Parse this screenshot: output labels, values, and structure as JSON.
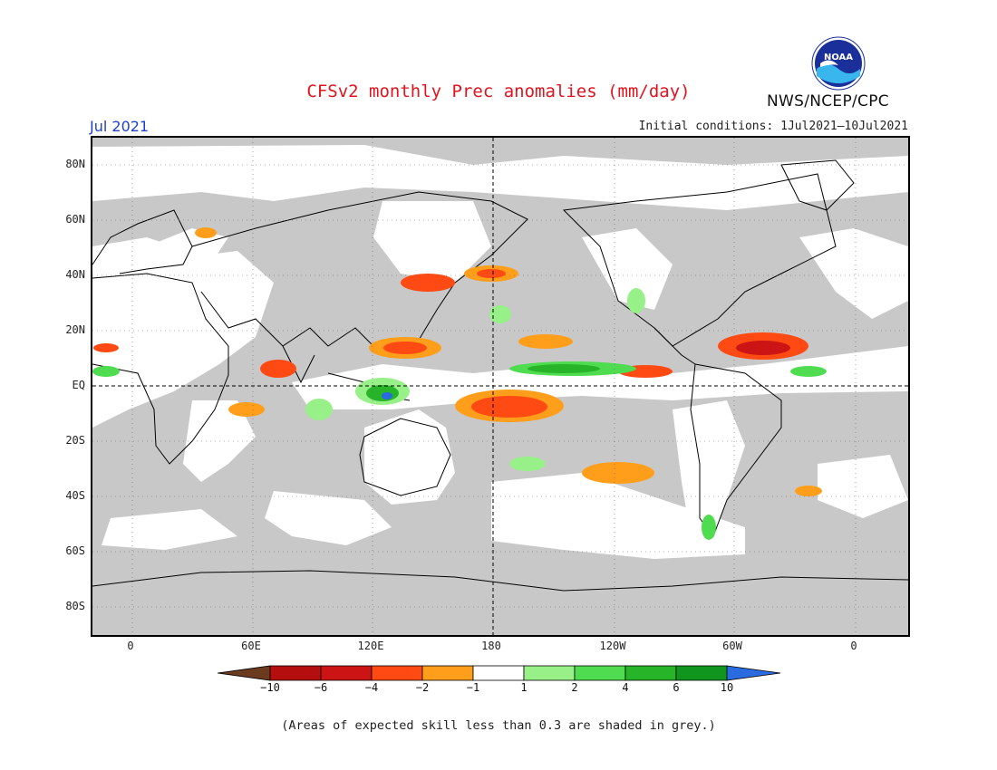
{
  "title": "CFSv2 monthly Prec anomalies (mm/day)",
  "agency": "NWS/NCEP/CPC",
  "logo_text": "NOAA",
  "month": "Jul 2021",
  "initial_conditions": "Initial conditions: 1Jul2021–10Jul2021",
  "lat_labels": [
    "80N",
    "60N",
    "40N",
    "20N",
    "EQ",
    "20S",
    "40S",
    "60S",
    "80S"
  ],
  "lon_labels": [
    "0",
    "60E",
    "120E",
    "180",
    "120W",
    "60W",
    "0"
  ],
  "colorbar": {
    "labels": [
      "−10",
      "−6",
      "−4",
      "−2",
      "−1",
      "1",
      "2",
      "4",
      "6",
      "10"
    ],
    "colors": [
      "#6b3a1f",
      "#b40e0e",
      "#cc1414",
      "#ff4a14",
      "#ff9e1a",
      "#ffffff",
      "#98f088",
      "#50dc50",
      "#28b428",
      "#10961e",
      "#2a6be0"
    ]
  },
  "skill_note": "(Areas of expected skill less than 0.3 are shaded in grey.)",
  "colors": {
    "title": "#e0141e",
    "month": "#1f3fd0",
    "skill_grey": "#c8c8c8"
  }
}
